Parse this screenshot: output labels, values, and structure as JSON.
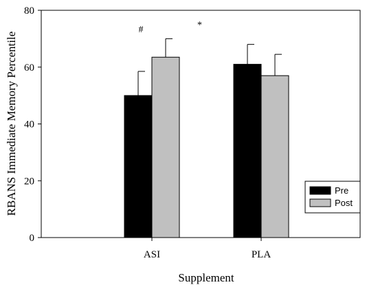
{
  "chart_data": {
    "type": "bar",
    "xlabel": "Supplement",
    "ylabel": "RBANS Immediate Memory Percentile",
    "categories": [
      "ASI",
      "PLA"
    ],
    "ylim": [
      0,
      80
    ],
    "yticks": [
      0,
      20,
      40,
      60,
      80
    ],
    "grid": false,
    "legend_position": "bottom-right",
    "series": [
      {
        "name": "Pre",
        "color": "#000000",
        "values": [
          50,
          61
        ],
        "errors": [
          8.5,
          7
        ]
      },
      {
        "name": "Post",
        "color": "#c0c0c0",
        "values": [
          63.5,
          57
        ],
        "errors": [
          6.5,
          7.5
        ]
      }
    ],
    "annotations": [
      {
        "text": "#",
        "x": "ASI",
        "y": 73.5
      },
      {
        "text": "*",
        "x_between": [
          "ASI",
          "PLA"
        ],
        "y": 75
      }
    ]
  }
}
